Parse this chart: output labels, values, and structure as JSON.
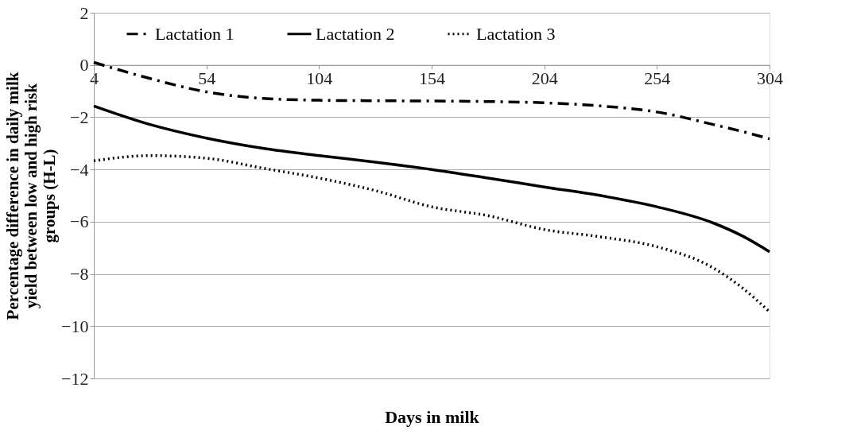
{
  "chart_data": {
    "type": "line",
    "xlabel": "Days in milk",
    "ylabel": "Percentage difference in daily milk yield between low and high risk groups (H-L)",
    "x": [
      4,
      29,
      54,
      79,
      104,
      129,
      154,
      179,
      204,
      229,
      254,
      279,
      292,
      304
    ],
    "series": [
      {
        "name": "Lactation 1",
        "color": "#000000",
        "line_style": "dashed",
        "values": [
          0.1,
          -0.52,
          -1.03,
          -1.28,
          -1.35,
          -1.37,
          -1.38,
          -1.4,
          -1.45,
          -1.57,
          -1.8,
          -2.28,
          -2.55,
          -2.83
        ]
      },
      {
        "name": "Lactation 2",
        "color": "#000000",
        "line_style": "solid",
        "values": [
          -1.57,
          -2.28,
          -2.8,
          -3.19,
          -3.47,
          -3.72,
          -4.0,
          -4.33,
          -4.67,
          -5.0,
          -5.43,
          -6.05,
          -6.55,
          -7.15
        ]
      },
      {
        "name": "Lactation 3",
        "color": "#000000",
        "line_style": "dotted",
        "values": [
          -3.67,
          -3.47,
          -3.57,
          -3.95,
          -4.33,
          -4.81,
          -5.43,
          -5.77,
          -6.3,
          -6.58,
          -6.96,
          -7.77,
          -8.54,
          -9.45
        ]
      }
    ],
    "xlim": [
      4,
      304
    ],
    "xticks": [
      4,
      54,
      104,
      154,
      204,
      254,
      304
    ],
    "ylim": [
      -12,
      2
    ],
    "yticks": [
      -12,
      -10,
      -8,
      -6,
      -4,
      -2,
      0,
      2
    ],
    "grid": "y",
    "legend": "top"
  }
}
